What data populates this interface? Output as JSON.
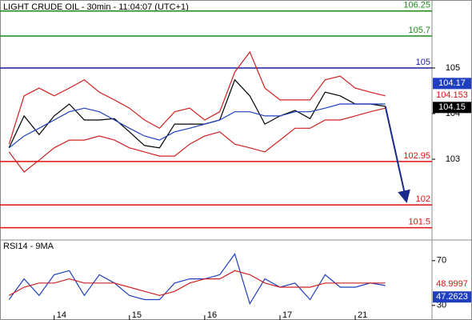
{
  "chart_data": {
    "type": "line",
    "title": "LIGHT CRUDE OIL - 30min - 11:04:07 (UTC+1)",
    "x": [
      -0.6,
      -0.4,
      -0.2,
      0,
      0.2,
      0.4,
      0.6,
      0.8,
      1.0,
      1.2,
      1.4,
      1.6,
      1.8,
      2.0,
      2.2,
      2.4,
      2.6,
      2.8,
      3.0,
      3.2,
      3.4,
      3.6,
      3.8,
      4.0,
      4.2,
      4.4
    ],
    "xlim": [
      -0.72,
      5.02
    ],
    "xticks": [
      {
        "value": 0,
        "label": "14"
      },
      {
        "value": 1,
        "label": "15"
      },
      {
        "value": 2,
        "label": "16"
      },
      {
        "value": 3,
        "label": "17"
      },
      {
        "value": 4,
        "label": "21"
      }
    ],
    "ylim": [
      101.23,
      106.49
    ],
    "yticks": [
      105,
      104,
      103
    ],
    "series": [
      {
        "name": "Price",
        "color": "#000000",
        "values": [
          103.25,
          103.95,
          103.54,
          103.95,
          104.21,
          103.86,
          103.86,
          103.89,
          103.6,
          103.3,
          103.25,
          103.77,
          103.77,
          103.77,
          103.86,
          104.74,
          104.39,
          103.77,
          103.95,
          104.07,
          103.89,
          104.47,
          104.39,
          104.21,
          104.21,
          104.16
        ]
      },
      {
        "name": "MA",
        "color": "#1f3fbf",
        "values": [
          103.25,
          103.51,
          103.68,
          103.86,
          104.04,
          104.12,
          104.04,
          103.86,
          103.68,
          103.51,
          103.42,
          103.6,
          103.68,
          103.77,
          103.86,
          104.04,
          104.04,
          103.95,
          103.95,
          104.04,
          104.04,
          104.12,
          104.21,
          104.21,
          104.21,
          104.21
        ]
      },
      {
        "name": "Upper",
        "color": "#d02020",
        "values": [
          103.33,
          104.39,
          104.56,
          104.39,
          104.56,
          104.74,
          104.47,
          104.3,
          104.12,
          103.86,
          103.68,
          104.04,
          104.12,
          103.86,
          104.04,
          104.91,
          105.35,
          104.56,
          104.3,
          104.3,
          104.3,
          104.74,
          104.82,
          104.56,
          104.47,
          104.39
        ]
      },
      {
        "name": "Lower",
        "color": "#d02020",
        "values": [
          103.16,
          102.72,
          102.98,
          103.25,
          103.42,
          103.42,
          103.51,
          103.42,
          103.25,
          103.16,
          103.07,
          103.07,
          103.33,
          103.51,
          103.6,
          103.33,
          103.25,
          103.16,
          103.42,
          103.68,
          103.68,
          103.86,
          103.86,
          103.95,
          104.04,
          104.12
        ]
      }
    ],
    "level_lines": {
      "values": [
        106.25,
        105.7,
        105,
        102.95,
        102,
        101.5
      ],
      "colors": [
        "#1a8a1a",
        "#1a8a1a",
        "#1a1aa0",
        "#e01010",
        "#e01010",
        "#e01010"
      ]
    },
    "price_labels": [
      {
        "value": 104.17,
        "color": "#1f3fbf",
        "boxed": true
      },
      {
        "value": 104.153,
        "color": "#e01010",
        "boxed": false
      },
      {
        "value": 104.15,
        "color": "#000000",
        "boxed": true
      }
    ],
    "rsi": {
      "title": "RSI14 - 9MA",
      "ylim": [
        17,
        87
      ],
      "yticks": [
        70,
        30
      ],
      "series": [
        {
          "name": "RSI14",
          "color": "#1f3fbf",
          "values": [
            35.2,
            53.7,
            38.9,
            57.4,
            61.1,
            38.9,
            57.4,
            50,
            38.9,
            35.2,
            35.2,
            50,
            53.7,
            53.7,
            57.4,
            75.9,
            31.5,
            53.7,
            46.3,
            50,
            35.2,
            57.4,
            46.3,
            46.3,
            50,
            47.8
          ]
        },
        {
          "name": "9MA",
          "color": "#d02020",
          "values": [
            38.9,
            46.3,
            50,
            50,
            53.7,
            50,
            50,
            50,
            46.3,
            42.6,
            38.9,
            42.6,
            50,
            53.7,
            53.7,
            61.1,
            57.4,
            50,
            46.3,
            46.3,
            46.3,
            50,
            50,
            50,
            50,
            50
          ]
        }
      ],
      "value_labels": [
        {
          "value": 48.9997,
          "color": "#e01010",
          "boxed": false
        },
        {
          "value": 47.2623,
          "color": "#1f3fbf",
          "boxed": true
        }
      ]
    }
  }
}
